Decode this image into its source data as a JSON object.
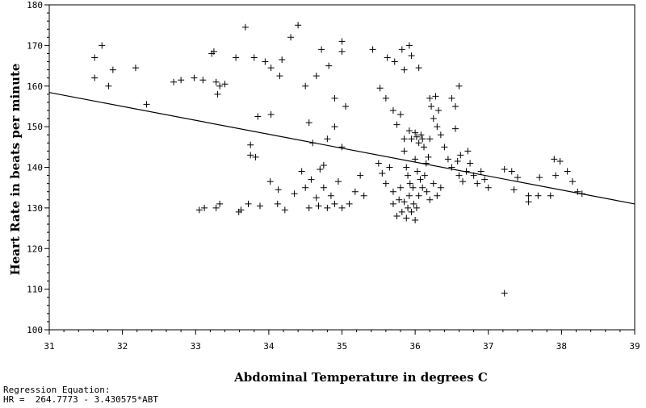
{
  "chart_data": {
    "type": "scatter",
    "title": "",
    "xlabel": "Abdominal Temperature in degrees C",
    "ylabel": "Heart Rate in beats per minute",
    "xlim": [
      31,
      39
    ],
    "ylim": [
      100,
      180
    ],
    "xticks": [
      31,
      32,
      33,
      34,
      35,
      36,
      37,
      38,
      39
    ],
    "yticks": [
      100,
      110,
      120,
      130,
      140,
      150,
      160,
      170,
      180
    ],
    "grid": false,
    "marker": "plus",
    "regression": {
      "intercept": 264.7773,
      "slope": -3.430575
    },
    "series": [
      {
        "points": [
          [
            31.62,
            167
          ],
          [
            31.62,
            162
          ],
          [
            31.72,
            170
          ],
          [
            31.81,
            160
          ],
          [
            31.87,
            164
          ],
          [
            32.18,
            164.5
          ],
          [
            32.33,
            155.5
          ],
          [
            32.7,
            161
          ],
          [
            32.8,
            161.5
          ],
          [
            32.98,
            162
          ],
          [
            33.1,
            161.5
          ],
          [
            33.22,
            168
          ],
          [
            33.25,
            168.5
          ],
          [
            33.28,
            161
          ],
          [
            33.3,
            158
          ],
          [
            33.33,
            160
          ],
          [
            33.4,
            160.5
          ],
          [
            33.05,
            129.5
          ],
          [
            33.12,
            130
          ],
          [
            33.28,
            130
          ],
          [
            33.33,
            131
          ],
          [
            33.59,
            129
          ],
          [
            33.62,
            129.5
          ],
          [
            33.55,
            167
          ],
          [
            33.68,
            174.5
          ],
          [
            33.8,
            167
          ],
          [
            33.95,
            166
          ],
          [
            34.03,
            164.5
          ],
          [
            34.15,
            162.5
          ],
          [
            34.18,
            166.5
          ],
          [
            34.3,
            172
          ],
          [
            34.4,
            175
          ],
          [
            33.75,
            145.5
          ],
          [
            33.75,
            143
          ],
          [
            33.82,
            142.5
          ],
          [
            33.85,
            152.5
          ],
          [
            34.03,
            153
          ],
          [
            34.02,
            136.5
          ],
          [
            34.13,
            134.5
          ],
          [
            33.72,
            131
          ],
          [
            33.88,
            130.5
          ],
          [
            34.12,
            131
          ],
          [
            34.22,
            129.5
          ],
          [
            34.35,
            133.5
          ],
          [
            34.5,
            160
          ],
          [
            34.55,
            151
          ],
          [
            34.65,
            162.5
          ],
          [
            34.72,
            169
          ],
          [
            34.82,
            165
          ],
          [
            34.9,
            157
          ],
          [
            35.0,
            171
          ],
          [
            35.0,
            168.5
          ],
          [
            35.05,
            155
          ],
          [
            34.6,
            146
          ],
          [
            34.7,
            139.5
          ],
          [
            34.75,
            140.5
          ],
          [
            34.8,
            147
          ],
          [
            34.9,
            150
          ],
          [
            35.0,
            145
          ],
          [
            34.45,
            139
          ],
          [
            34.5,
            135
          ],
          [
            34.58,
            137
          ],
          [
            34.55,
            130
          ],
          [
            34.65,
            132.5
          ],
          [
            34.68,
            130.5
          ],
          [
            34.75,
            135
          ],
          [
            34.8,
            130
          ],
          [
            34.85,
            133
          ],
          [
            34.9,
            131
          ],
          [
            34.95,
            136.5
          ],
          [
            35.0,
            130
          ],
          [
            35.1,
            131
          ],
          [
            35.18,
            134
          ],
          [
            35.25,
            138
          ],
          [
            35.3,
            133
          ],
          [
            35.42,
            169
          ],
          [
            35.52,
            159.5
          ],
          [
            35.62,
            167
          ],
          [
            35.72,
            166
          ],
          [
            35.82,
            169
          ],
          [
            35.85,
            164
          ],
          [
            35.92,
            170
          ],
          [
            35.95,
            167.5
          ],
          [
            36.05,
            164.5
          ],
          [
            35.6,
            157
          ],
          [
            35.7,
            154
          ],
          [
            35.75,
            150.5
          ],
          [
            35.8,
            153
          ],
          [
            35.85,
            147
          ],
          [
            35.85,
            144
          ],
          [
            35.5,
            141
          ],
          [
            35.55,
            138.5
          ],
          [
            35.6,
            136
          ],
          [
            35.65,
            140
          ],
          [
            35.7,
            134
          ],
          [
            35.7,
            131
          ],
          [
            35.75,
            128
          ],
          [
            35.78,
            132
          ],
          [
            35.8,
            135
          ],
          [
            35.82,
            129
          ],
          [
            35.85,
            131.5
          ],
          [
            35.88,
            127.5
          ],
          [
            35.9,
            130
          ],
          [
            35.92,
            133
          ],
          [
            35.95,
            129
          ],
          [
            35.98,
            131
          ],
          [
            36.0,
            127
          ],
          [
            36.02,
            130
          ],
          [
            36.05,
            133
          ],
          [
            35.92,
            149
          ],
          [
            35.95,
            147
          ],
          [
            36.0,
            148.5
          ],
          [
            36.02,
            147.5
          ],
          [
            36.05,
            146
          ],
          [
            36.08,
            148
          ],
          [
            36.1,
            147
          ],
          [
            36.12,
            145
          ],
          [
            36.15,
            141
          ],
          [
            36.18,
            142.5
          ],
          [
            36.2,
            147
          ],
          [
            35.88,
            140
          ],
          [
            35.9,
            138
          ],
          [
            35.93,
            136
          ],
          [
            35.97,
            135
          ],
          [
            36.0,
            142
          ],
          [
            36.03,
            139
          ],
          [
            36.07,
            137
          ],
          [
            36.1,
            135
          ],
          [
            36.13,
            138
          ],
          [
            36.16,
            134
          ],
          [
            36.2,
            132
          ],
          [
            36.25,
            136
          ],
          [
            36.3,
            133
          ],
          [
            36.35,
            135
          ],
          [
            36.2,
            157
          ],
          [
            36.22,
            155
          ],
          [
            36.25,
            152
          ],
          [
            36.28,
            157.5
          ],
          [
            36.3,
            150
          ],
          [
            36.32,
            154
          ],
          [
            36.35,
            148
          ],
          [
            36.4,
            145
          ],
          [
            36.45,
            142
          ],
          [
            36.5,
            140
          ],
          [
            36.5,
            157
          ],
          [
            36.55,
            155
          ],
          [
            36.6,
            160
          ],
          [
            36.55,
            149.5
          ],
          [
            36.62,
            143
          ],
          [
            36.58,
            141.5
          ],
          [
            36.6,
            138
          ],
          [
            36.65,
            136.5
          ],
          [
            36.7,
            139
          ],
          [
            36.72,
            144
          ],
          [
            36.75,
            141
          ],
          [
            36.8,
            138
          ],
          [
            36.85,
            136
          ],
          [
            36.9,
            139
          ],
          [
            36.95,
            137
          ],
          [
            37.0,
            135
          ],
          [
            37.22,
            139.5
          ],
          [
            37.32,
            139
          ],
          [
            37.35,
            134.5
          ],
          [
            37.4,
            137.5
          ],
          [
            37.55,
            133
          ],
          [
            37.55,
            131.5
          ],
          [
            37.7,
            137.5
          ],
          [
            37.68,
            133
          ],
          [
            37.85,
            133
          ],
          [
            37.9,
            142
          ],
          [
            37.98,
            141.5
          ],
          [
            37.92,
            138
          ],
          [
            38.08,
            139
          ],
          [
            38.15,
            136.5
          ],
          [
            38.22,
            134
          ],
          [
            38.28,
            133.5
          ],
          [
            37.22,
            109
          ]
        ]
      }
    ]
  },
  "regression_label": "Regression Equation:",
  "regression_text": "HR =  264.7773 - 3.430575*ABT"
}
